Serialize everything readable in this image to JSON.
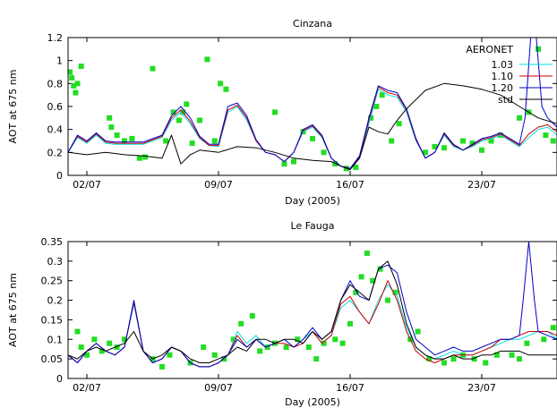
{
  "chart_data": [
    {
      "type": "line",
      "title": "Cinzana",
      "xlabel": "Day (2005)",
      "ylabel": "AOT at 675 nm",
      "xlim": [
        0.0,
        26.0
      ],
      "ylim": [
        0,
        1.2
      ],
      "yticks": [
        0,
        0.2,
        0.4,
        0.6,
        0.8,
        1,
        1.2
      ],
      "ytick_labels": [
        "0",
        "0.2",
        "0.4",
        "0.6",
        "0.8",
        "1",
        "1.2"
      ],
      "xticks": [
        1.0,
        8.0,
        15.0,
        22.0
      ],
      "xtick_labels": [
        "02/07",
        "09/07",
        "16/07",
        "23/07"
      ],
      "legend": {
        "position": "top-right",
        "title": "AERONET"
      },
      "series": [
        {
          "name": "1.03",
          "color": "#00e0e0",
          "x": [
            0,
            0.5,
            1,
            1.5,
            2,
            2.5,
            3,
            4,
            5,
            5.5,
            6,
            6.5,
            7,
            7.5,
            8,
            8.5,
            9,
            9.5,
            10,
            10.5,
            11,
            11.5,
            12,
            12.5,
            13,
            13.5,
            14,
            14.5,
            15,
            15.5,
            16,
            16.5,
            17,
            17.5,
            18,
            18.5,
            19,
            19.5,
            20,
            20.5,
            21,
            21.5,
            22,
            22.5,
            23,
            23.5,
            24,
            24.5,
            25,
            25.5,
            26
          ],
          "y": [
            0.2,
            0.33,
            0.28,
            0.35,
            0.28,
            0.27,
            0.27,
            0.27,
            0.33,
            0.48,
            0.55,
            0.45,
            0.32,
            0.26,
            0.25,
            0.55,
            0.6,
            0.48,
            0.3,
            0.2,
            0.18,
            0.12,
            0.2,
            0.38,
            0.42,
            0.33,
            0.15,
            0.08,
            0.06,
            0.15,
            0.45,
            0.75,
            0.7,
            0.68,
            0.55,
            0.3,
            0.15,
            0.2,
            0.35,
            0.25,
            0.22,
            0.25,
            0.3,
            0.32,
            0.35,
            0.3,
            0.25,
            0.33,
            0.4,
            0.42,
            0.35
          ]
        },
        {
          "name": "1.10",
          "color": "#cc0000",
          "x": [
            0,
            0.5,
            1,
            1.5,
            2,
            2.5,
            3,
            4,
            5,
            5.5,
            6,
            6.5,
            7,
            7.5,
            8,
            8.5,
            9,
            9.5,
            10,
            10.5,
            11,
            11.5,
            12,
            12.5,
            13,
            13.5,
            14,
            14.5,
            15,
            15.5,
            16,
            16.5,
            17,
            17.5,
            18,
            18.5,
            19,
            19.5,
            20,
            20.5,
            21,
            21.5,
            22,
            22.5,
            23,
            23.5,
            24,
            24.5,
            25,
            25.5,
            26
          ],
          "y": [
            0.2,
            0.34,
            0.29,
            0.36,
            0.29,
            0.28,
            0.28,
            0.28,
            0.34,
            0.5,
            0.57,
            0.47,
            0.33,
            0.26,
            0.26,
            0.57,
            0.61,
            0.5,
            0.3,
            0.2,
            0.18,
            0.12,
            0.2,
            0.39,
            0.43,
            0.34,
            0.15,
            0.08,
            0.06,
            0.16,
            0.48,
            0.77,
            0.72,
            0.7,
            0.57,
            0.31,
            0.15,
            0.2,
            0.36,
            0.26,
            0.22,
            0.26,
            0.31,
            0.33,
            0.36,
            0.31,
            0.26,
            0.36,
            0.42,
            0.44,
            0.38
          ]
        },
        {
          "name": "1.20",
          "color": "#0000cc",
          "x": [
            0,
            0.5,
            1,
            1.5,
            2,
            2.5,
            3,
            4,
            5,
            5.5,
            6,
            6.5,
            7,
            7.5,
            8,
            8.5,
            9,
            9.5,
            10,
            10.5,
            11,
            11.5,
            12,
            12.5,
            13,
            13.5,
            14,
            14.5,
            15,
            15.5,
            16,
            16.5,
            17,
            17.5,
            18,
            18.5,
            19,
            19.5,
            20,
            20.5,
            21,
            21.5,
            22,
            22.5,
            23,
            23.5,
            24,
            24.3,
            24.6,
            24.9,
            25.2,
            25.5,
            26
          ],
          "y": [
            0.2,
            0.35,
            0.3,
            0.37,
            0.3,
            0.29,
            0.29,
            0.29,
            0.35,
            0.52,
            0.6,
            0.5,
            0.34,
            0.27,
            0.27,
            0.6,
            0.63,
            0.52,
            0.31,
            0.2,
            0.18,
            0.12,
            0.2,
            0.4,
            0.44,
            0.35,
            0.15,
            0.08,
            0.06,
            0.17,
            0.5,
            0.78,
            0.74,
            0.72,
            0.58,
            0.32,
            0.15,
            0.2,
            0.37,
            0.27,
            0.22,
            0.27,
            0.32,
            0.34,
            0.37,
            0.32,
            0.27,
            0.5,
            1.2,
            1.2,
            0.6,
            0.5,
            0.42
          ]
        },
        {
          "name": "std",
          "color": "#000000",
          "x": [
            0,
            1,
            2,
            3,
            4,
            5,
            5.5,
            6,
            6.5,
            7,
            8,
            9,
            10,
            11,
            12,
            13,
            14,
            14.5,
            15,
            15.5,
            16,
            16.5,
            17,
            17.5,
            18,
            19,
            20,
            21,
            22,
            23,
            24,
            25,
            26
          ],
          "y": [
            0.2,
            0.18,
            0.2,
            0.18,
            0.17,
            0.15,
            0.35,
            0.1,
            0.18,
            0.22,
            0.2,
            0.25,
            0.24,
            0.2,
            0.15,
            0.13,
            0.12,
            0.08,
            0.05,
            0.15,
            0.42,
            0.38,
            0.36,
            0.48,
            0.58,
            0.74,
            0.8,
            0.78,
            0.75,
            0.7,
            0.6,
            0.5,
            0.45
          ]
        }
      ],
      "observations": {
        "name": "AERONET",
        "color": "#22dd22",
        "x": [
          0.1,
          0.2,
          0.3,
          0.4,
          0.5,
          0.7,
          2.2,
          2.3,
          2.6,
          3.0,
          3.4,
          3.8,
          4.1,
          4.5,
          5.2,
          5.6,
          5.9,
          6.1,
          6.3,
          6.6,
          7.0,
          7.4,
          7.8,
          8.1,
          8.4,
          11.0,
          11.5,
          12.0,
          12.5,
          13.0,
          13.6,
          14.2,
          14.8,
          15.3,
          16.1,
          16.4,
          16.7,
          17.2,
          17.6,
          19.0,
          19.5,
          20.0,
          21.0,
          21.5,
          22.0,
          22.5,
          23.0,
          24.0,
          24.5,
          25.0,
          25.4,
          25.8
        ],
        "y": [
          0.9,
          0.85,
          0.78,
          0.72,
          0.8,
          0.95,
          0.5,
          0.42,
          0.35,
          0.3,
          0.32,
          0.15,
          0.16,
          0.93,
          0.3,
          0.55,
          0.48,
          0.55,
          0.62,
          0.28,
          0.48,
          1.01,
          0.3,
          0.8,
          0.75,
          0.55,
          0.1,
          0.12,
          0.38,
          0.32,
          0.2,
          0.1,
          0.06,
          0.07,
          0.5,
          0.6,
          0.7,
          0.3,
          0.45,
          0.2,
          0.25,
          0.24,
          0.3,
          0.28,
          0.22,
          0.3,
          0.35,
          0.5,
          0.55,
          1.1,
          0.35,
          0.3
        ]
      }
    },
    {
      "type": "line",
      "title": "Le Fauga",
      "xlabel": "Day (2005)",
      "ylabel": "AOT at 675 nm",
      "xlim": [
        0.0,
        26.0
      ],
      "ylim": [
        0,
        0.35
      ],
      "yticks": [
        0,
        0.05,
        0.1,
        0.15,
        0.2,
        0.25,
        0.3,
        0.35
      ],
      "ytick_labels": [
        "0",
        "0.05",
        "0.1",
        "0.15",
        "0.2",
        "0.25",
        "0.3",
        "0.35"
      ],
      "xticks": [
        1.0,
        8.0,
        15.0,
        22.0
      ],
      "xtick_labels": [
        "02/07",
        "09/07",
        "16/07",
        "23/07"
      ],
      "series": [
        {
          "name": "1.03",
          "color": "#00e0e0",
          "x": [
            0,
            0.5,
            1,
            1.5,
            2,
            2.5,
            3,
            3.5,
            4,
            4.5,
            5,
            5.5,
            6,
            6.5,
            7,
            7.5,
            8,
            8.5,
            9,
            9.5,
            10,
            10.5,
            11,
            11.5,
            12,
            12.5,
            13,
            13.5,
            14,
            14.5,
            15,
            15.5,
            16,
            16.5,
            17,
            17.5,
            18,
            18.5,
            19,
            19.5,
            20,
            20.5,
            21,
            21.5,
            22,
            22.5,
            23,
            23.5,
            24,
            24.5,
            25,
            25.5,
            26
          ],
          "y": [
            0.06,
            0.04,
            0.07,
            0.09,
            0.07,
            0.06,
            0.08,
            0.19,
            0.07,
            0.04,
            0.05,
            0.08,
            0.07,
            0.04,
            0.03,
            0.03,
            0.04,
            0.06,
            0.12,
            0.09,
            0.11,
            0.08,
            0.09,
            0.1,
            0.08,
            0.1,
            0.12,
            0.09,
            0.11,
            0.18,
            0.2,
            0.17,
            0.14,
            0.2,
            0.24,
            0.21,
            0.13,
            0.08,
            0.06,
            0.05,
            0.06,
            0.07,
            0.06,
            0.06,
            0.07,
            0.08,
            0.09,
            0.1,
            0.1,
            0.11,
            0.12,
            0.12,
            0.1
          ]
        },
        {
          "name": "1.10",
          "color": "#cc0000",
          "x": [
            0,
            0.5,
            1,
            1.5,
            2,
            2.5,
            3,
            3.5,
            4,
            4.5,
            5,
            5.5,
            6,
            6.5,
            7,
            7.5,
            8,
            8.5,
            9,
            9.5,
            10,
            10.5,
            11,
            11.5,
            12,
            12.5,
            13,
            13.5,
            14,
            14.5,
            15,
            15.5,
            16,
            16.5,
            17,
            17.5,
            18,
            18.5,
            19,
            19.5,
            20,
            20.5,
            21,
            21.5,
            22,
            22.5,
            23,
            23.5,
            24,
            24.5,
            25,
            25.5,
            26
          ],
          "y": [
            0.06,
            0.04,
            0.07,
            0.09,
            0.07,
            0.06,
            0.08,
            0.195,
            0.07,
            0.04,
            0.05,
            0.08,
            0.07,
            0.04,
            0.03,
            0.03,
            0.04,
            0.06,
            0.11,
            0.08,
            0.1,
            0.08,
            0.09,
            0.09,
            0.08,
            0.09,
            0.12,
            0.09,
            0.11,
            0.19,
            0.21,
            0.17,
            0.14,
            0.19,
            0.25,
            0.2,
            0.12,
            0.07,
            0.05,
            0.04,
            0.05,
            0.06,
            0.06,
            0.06,
            0.07,
            0.08,
            0.1,
            0.1,
            0.11,
            0.12,
            0.12,
            0.12,
            0.11
          ]
        },
        {
          "name": "1.20",
          "color": "#0000cc",
          "x": [
            0,
            0.5,
            1,
            1.5,
            2,
            2.5,
            3,
            3.5,
            4,
            4.5,
            5,
            5.5,
            6,
            6.5,
            7,
            7.5,
            8,
            8.5,
            9,
            9.5,
            10,
            10.5,
            11,
            11.5,
            12,
            12.5,
            13,
            13.5,
            14,
            14.5,
            15,
            15.5,
            16,
            16.5,
            17,
            17.5,
            18,
            18.5,
            19,
            19.5,
            20,
            20.5,
            21,
            21.5,
            22,
            22.5,
            23,
            23.5,
            24,
            24.2,
            24.5,
            24.8,
            25,
            25.5,
            26
          ],
          "y": [
            0.06,
            0.04,
            0.07,
            0.09,
            0.07,
            0.06,
            0.08,
            0.2,
            0.07,
            0.04,
            0.05,
            0.08,
            0.07,
            0.04,
            0.03,
            0.03,
            0.04,
            0.06,
            0.1,
            0.08,
            0.1,
            0.08,
            0.09,
            0.1,
            0.08,
            0.1,
            0.13,
            0.1,
            0.12,
            0.2,
            0.25,
            0.21,
            0.2,
            0.28,
            0.29,
            0.27,
            0.17,
            0.1,
            0.08,
            0.06,
            0.07,
            0.08,
            0.07,
            0.07,
            0.08,
            0.09,
            0.1,
            0.1,
            0.11,
            0.2,
            0.35,
            0.2,
            0.12,
            0.11,
            0.1
          ]
        },
        {
          "name": "std",
          "color": "#000000",
          "x": [
            0,
            0.5,
            1,
            1.5,
            2,
            2.5,
            3,
            3.5,
            4,
            4.5,
            5,
            5.5,
            6,
            6.5,
            7,
            7.5,
            8,
            8.5,
            9,
            9.5,
            10,
            10.5,
            11,
            11.5,
            12,
            12.5,
            13,
            13.5,
            14,
            14.5,
            15,
            15.5,
            16,
            16.5,
            17,
            17.5,
            18,
            18.5,
            19,
            19.5,
            20,
            20.5,
            21,
            21.5,
            22,
            22.5,
            23,
            23.5,
            24,
            24.5,
            25,
            25.5,
            26
          ],
          "y": [
            0.06,
            0.05,
            0.07,
            0.08,
            0.07,
            0.08,
            0.09,
            0.12,
            0.07,
            0.05,
            0.06,
            0.08,
            0.07,
            0.05,
            0.04,
            0.04,
            0.05,
            0.06,
            0.08,
            0.07,
            0.1,
            0.1,
            0.09,
            0.1,
            0.1,
            0.09,
            0.12,
            0.1,
            0.12,
            0.2,
            0.24,
            0.22,
            0.2,
            0.28,
            0.3,
            0.24,
            0.14,
            0.08,
            0.06,
            0.05,
            0.05,
            0.06,
            0.05,
            0.05,
            0.06,
            0.06,
            0.07,
            0.07,
            0.07,
            0.06,
            0.06,
            0.06,
            0.06
          ]
        }
      ],
      "observations": {
        "name": "AERONET",
        "color": "#22dd22",
        "x": [
          0.5,
          0.7,
          1.0,
          1.4,
          1.8,
          2.2,
          2.6,
          3.0,
          4.5,
          5.0,
          5.4,
          6.5,
          7.2,
          7.8,
          8.3,
          8.8,
          9.2,
          9.8,
          10.2,
          10.6,
          11.0,
          11.6,
          12.2,
          12.8,
          13.2,
          13.6,
          14.2,
          14.6,
          15.0,
          15.3,
          15.6,
          15.9,
          16.2,
          16.6,
          17.0,
          17.4,
          18.2,
          18.6,
          19.2,
          20.0,
          20.5,
          21.0,
          21.6,
          22.2,
          22.8,
          23.6,
          24.0,
          24.4,
          25.3,
          25.8
        ],
        "y": [
          0.12,
          0.08,
          0.06,
          0.1,
          0.07,
          0.09,
          0.08,
          0.1,
          0.05,
          0.03,
          0.06,
          0.04,
          0.08,
          0.06,
          0.05,
          0.1,
          0.14,
          0.16,
          0.07,
          0.08,
          0.09,
          0.08,
          0.1,
          0.08,
          0.05,
          0.09,
          0.1,
          0.09,
          0.14,
          0.22,
          0.26,
          0.32,
          0.25,
          0.28,
          0.2,
          0.22,
          0.1,
          0.12,
          0.05,
          0.04,
          0.05,
          0.06,
          0.05,
          0.04,
          0.06,
          0.06,
          0.05,
          0.09,
          0.1,
          0.13
        ]
      }
    }
  ]
}
